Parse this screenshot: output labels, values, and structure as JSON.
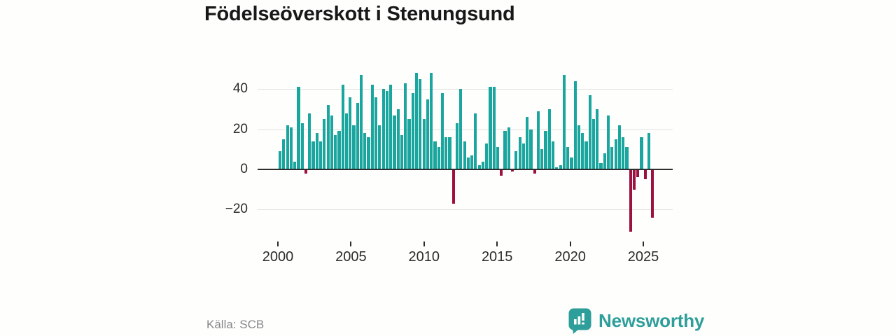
{
  "title": "Födelseöverskott i Stenungsund",
  "source": "Källa: SCB",
  "brand": {
    "name": "Newsworthy",
    "icon": "newsworthy-speech-bubble-chart-icon"
  },
  "colors": {
    "positive_bar": "#1aa69e",
    "negative_bar": "#9e1040",
    "grid": "#e2e2e0",
    "zero_line": "#2e2e2e",
    "axis_text": "#2b2b2b",
    "title_text": "#181818",
    "source_text": "#87868a",
    "brand_teal": "#2e9e9b"
  },
  "chart_data": {
    "type": "bar",
    "title": "Födelseöverskott i Stenungsund",
    "xlabel": "",
    "ylabel": "",
    "period": "quarterly",
    "start_period": "2000-Q1",
    "end_period": "2025-Q2",
    "x_tick_labels": [
      "2000",
      "2005",
      "2010",
      "2015",
      "2020",
      "2025"
    ],
    "y_ticks": [
      40,
      20,
      0,
      -20
    ],
    "ylim": [
      -32,
      50
    ],
    "grid": "horizontal",
    "legend": "none",
    "series": [
      {
        "name": "Födelseöverskott",
        "values": [
          9,
          15,
          22,
          21,
          4,
          41,
          23,
          -2,
          28,
          14,
          18,
          14,
          25,
          32,
          27,
          17,
          19,
          42,
          28,
          36,
          22,
          33,
          47,
          18,
          16,
          42,
          36,
          22,
          40,
          39,
          42,
          27,
          30,
          17,
          43,
          25,
          38,
          48,
          45,
          25,
          35,
          48,
          14,
          11,
          38,
          16,
          16,
          -17,
          23,
          40,
          14,
          6,
          7,
          28,
          2,
          4,
          13,
          41,
          41,
          11,
          -3,
          19,
          21,
          -1,
          9,
          16,
          13,
          26,
          20,
          -2,
          29,
          10,
          19,
          30,
          14,
          1,
          2,
          47,
          11,
          6,
          44,
          22,
          18,
          14,
          37,
          25,
          30,
          3,
          8,
          27,
          11,
          15,
          22,
          16,
          11,
          -31,
          -10,
          -4,
          16,
          -5,
          18,
          -24
        ]
      }
    ]
  }
}
